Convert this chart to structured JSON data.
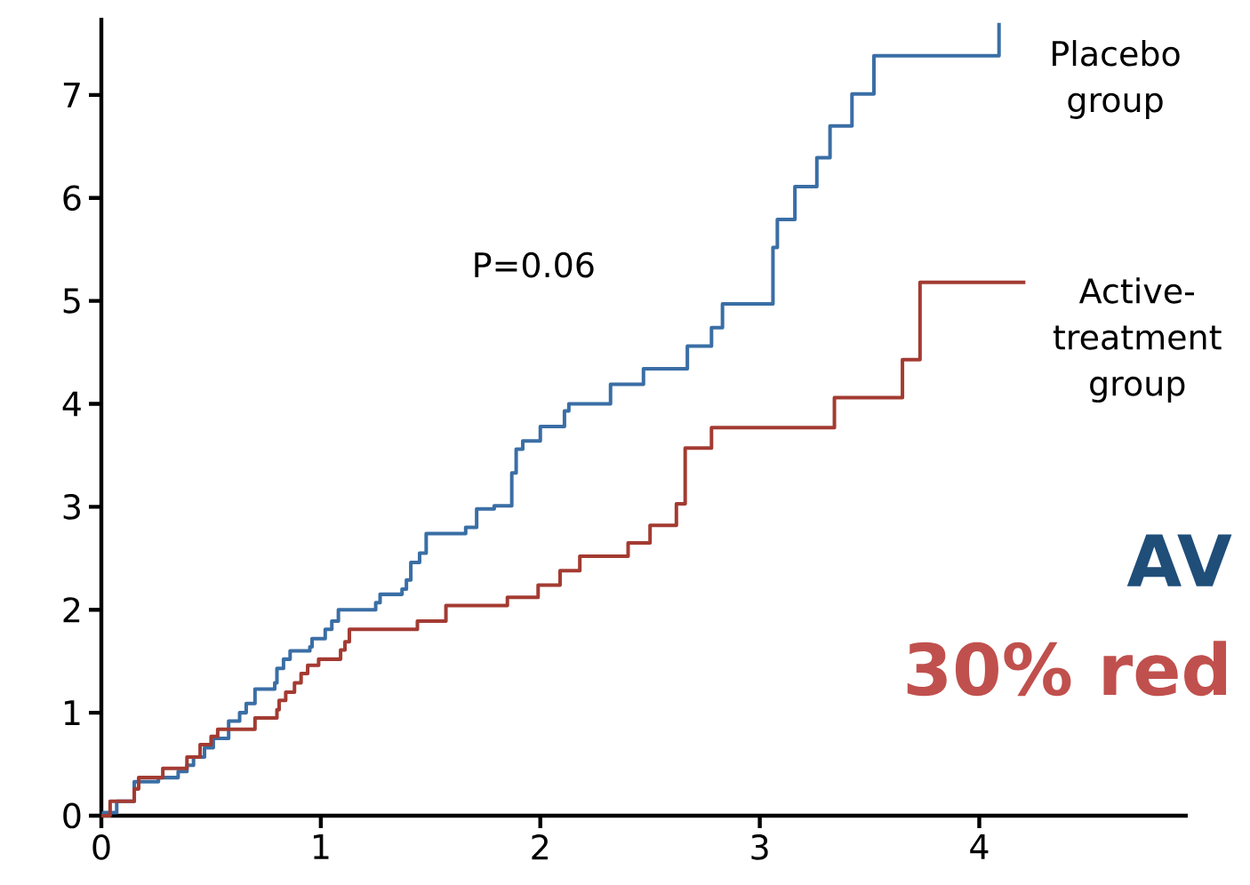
{
  "chart_data": {
    "type": "step",
    "xlim": [
      0,
      4.95
    ],
    "ylim": [
      0,
      7.75
    ],
    "xticks": [
      0,
      1,
      2,
      3,
      4
    ],
    "yticks": [
      0,
      1,
      2,
      3,
      4,
      5,
      6,
      7
    ],
    "grid": false,
    "legend": false,
    "line_style": "solid",
    "marker": "none",
    "annotations": [
      "P=0.06",
      "AV",
      "30% red"
    ],
    "series": [
      {
        "name": "Placebo group",
        "color": "#3a6ea5",
        "x": [
          0,
          0.01,
          0.07,
          0.15,
          0.26,
          0.35,
          0.39,
          0.42,
          0.47,
          0.51,
          0.58,
          0.63,
          0.66,
          0.7,
          0.79,
          0.8,
          0.83,
          0.86,
          0.95,
          0.96,
          1.02,
          1.05,
          1.08,
          1.25,
          1.27,
          1.37,
          1.39,
          1.41,
          1.45,
          1.48,
          1.66,
          1.71,
          1.79,
          1.87,
          1.89,
          1.92,
          2.0,
          2.11,
          2.13,
          2.32,
          2.47,
          2.67,
          2.78,
          2.83,
          3.06,
          3.08,
          3.16,
          3.26,
          3.32,
          3.42,
          3.52,
          4.09
        ],
        "values": [
          0,
          0.03,
          0.14,
          0.33,
          0.37,
          0.43,
          0.49,
          0.57,
          0.66,
          0.75,
          0.92,
          1.0,
          1.09,
          1.23,
          1.29,
          1.43,
          1.52,
          1.6,
          1.64,
          1.72,
          1.81,
          1.89,
          2.0,
          2.07,
          2.15,
          2.2,
          2.29,
          2.46,
          2.55,
          2.74,
          2.8,
          2.98,
          3.01,
          3.33,
          3.56,
          3.64,
          3.78,
          3.93,
          4.0,
          4.19,
          4.34,
          4.56,
          4.74,
          4.97,
          5.52,
          5.79,
          6.11,
          6.39,
          6.7,
          7.01,
          7.38,
          7.7
        ]
      },
      {
        "name": "Active-treatment group",
        "color": "#a33b32",
        "x": [
          0,
          0.04,
          0.15,
          0.17,
          0.28,
          0.39,
          0.45,
          0.5,
          0.53,
          0.7,
          0.8,
          0.81,
          0.84,
          0.88,
          0.91,
          0.94,
          0.99,
          1.09,
          1.11,
          1.13,
          1.44,
          1.57,
          1.85,
          1.99,
          2.09,
          2.18,
          2.4,
          2.5,
          2.62,
          2.66,
          2.78,
          3.34,
          3.65,
          3.73,
          4.21
        ],
        "values": [
          0,
          0.14,
          0.26,
          0.37,
          0.46,
          0.57,
          0.69,
          0.77,
          0.84,
          0.95,
          1.03,
          1.12,
          1.2,
          1.29,
          1.38,
          1.46,
          1.52,
          1.61,
          1.69,
          1.81,
          1.89,
          2.04,
          2.12,
          2.24,
          2.38,
          2.52,
          2.65,
          2.82,
          3.03,
          3.57,
          3.77,
          4.06,
          4.43,
          5.18,
          5.18
        ]
      }
    ]
  }
}
